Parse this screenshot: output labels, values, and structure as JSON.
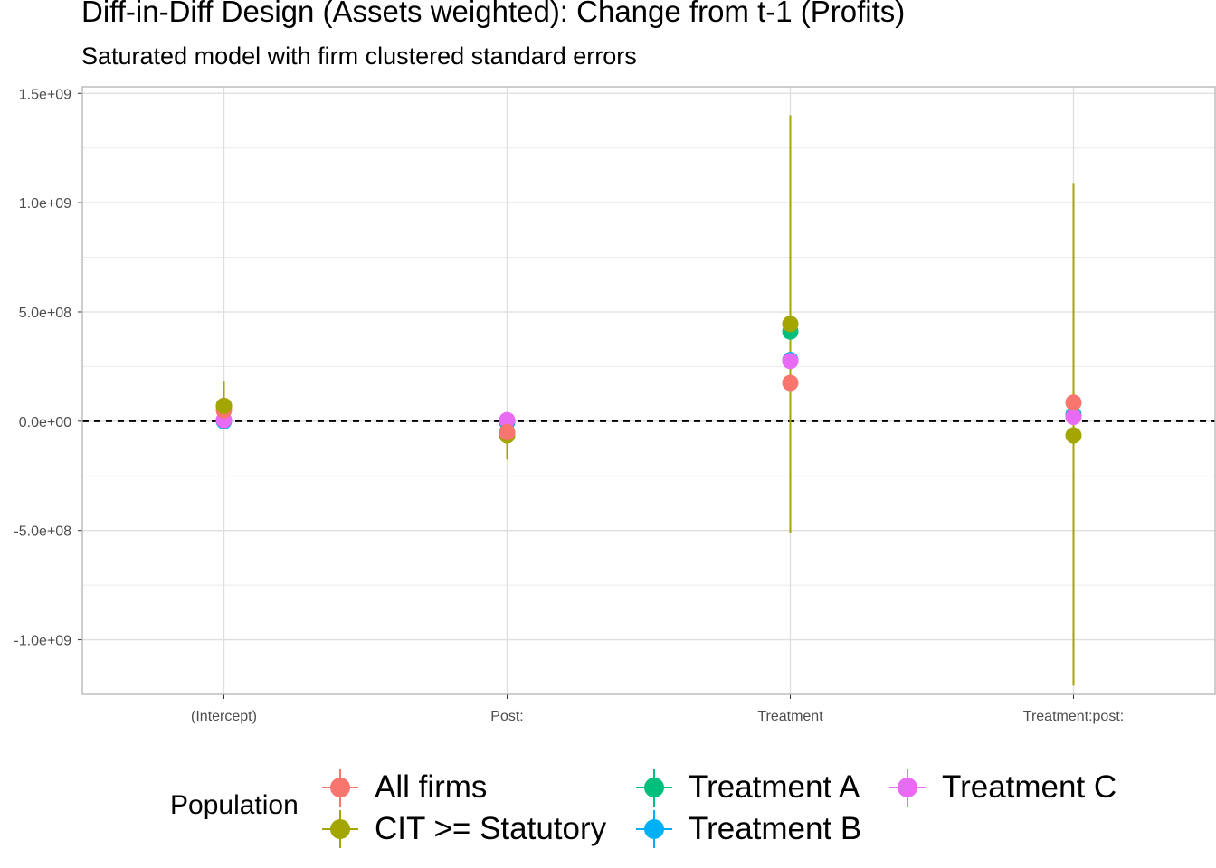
{
  "chart_data": {
    "type": "scatter",
    "title": "Diff-in-Diff Design (Assets weighted): Change from t-1 (Profits)",
    "subtitle": "Saturated model with firm clustered standard errors",
    "xlabel": "",
    "ylabel": "",
    "categories": [
      "(Intercept)",
      "Post:",
      "Treatment",
      "Treatment:post:"
    ],
    "ylim": [
      -1250000000.0,
      1530000000.0
    ],
    "y_ticks": [
      1500000000.0,
      1000000000.0,
      500000000.0,
      0,
      -500000000.0,
      -1000000000.0
    ],
    "y_tick_labels": [
      "1.5e+09",
      "1.0e+09",
      "5.0e+08",
      "0.0e+00",
      "-5.0e+08",
      "-1.0e+09"
    ],
    "reference_line": 0,
    "grid": true,
    "legend_title": "Population",
    "legend_position": "bottom",
    "series": [
      {
        "name": "All firms",
        "color": "#F8766D",
        "values": [
          50000000.0,
          -50000000.0,
          175000000.0,
          85000000.0
        ],
        "lower": [
          null,
          null,
          null,
          null
        ],
        "upper": [
          null,
          null,
          null,
          null
        ]
      },
      {
        "name": "CIT >= Statutory",
        "color": "#A3A500",
        "values": [
          70000000.0,
          -65000000.0,
          445000000.0,
          -65000000.0
        ],
        "lower": [
          -10000000.0,
          -175000000.0,
          -510000000.0,
          -1210000000.0
        ],
        "upper": [
          185000000.0,
          10000000.0,
          1400000000.0,
          1090000000.0
        ]
      },
      {
        "name": "Treatment A",
        "color": "#00BF7D",
        "values": [
          5000000.0,
          0,
          410000000.0,
          25000000.0
        ],
        "lower": [
          null,
          null,
          null,
          null
        ],
        "upper": [
          null,
          null,
          null,
          null
        ]
      },
      {
        "name": "Treatment B",
        "color": "#00B0F6",
        "values": [
          0,
          -5000000.0,
          280000000.0,
          30000000.0
        ],
        "lower": [
          null,
          null,
          null,
          null
        ],
        "upper": [
          null,
          null,
          null,
          null
        ]
      },
      {
        "name": "Treatment C",
        "color": "#E76BF3",
        "values": [
          5000000.0,
          5000000.0,
          275000000.0,
          20000000.0
        ],
        "lower": [
          null,
          null,
          null,
          null
        ],
        "upper": [
          null,
          null,
          null,
          null
        ]
      }
    ]
  }
}
